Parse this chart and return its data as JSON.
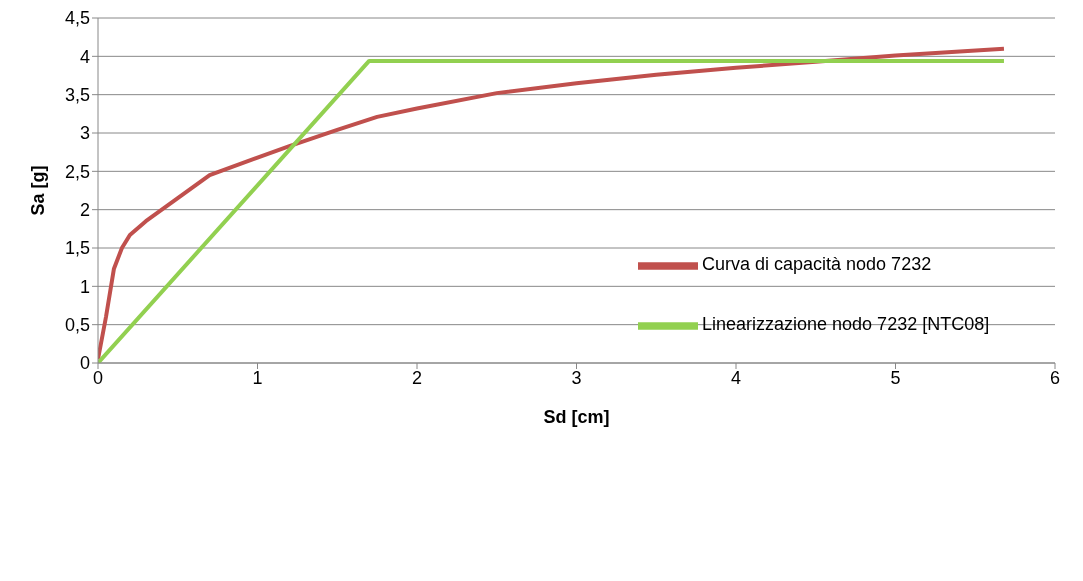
{
  "chart_data": {
    "type": "line",
    "xlabel": "Sd [cm]",
    "ylabel": "Sa [g]",
    "xlim": [
      0,
      6
    ],
    "xticks": [
      0,
      1,
      2,
      3,
      4,
      5,
      6
    ],
    "ylim": [
      0,
      4.5
    ],
    "yticks": [
      0,
      {
        "value": 0.5,
        "label": "0,5"
      },
      1,
      {
        "value": 1.5,
        "label": "1,5"
      },
      2,
      {
        "value": 2.5,
        "label": "2,5"
      },
      3,
      {
        "value": 3.5,
        "label": "3,5"
      },
      4,
      {
        "value": 4.5,
        "label": "4,5"
      }
    ],
    "grid": "y",
    "legend": "right",
    "marker": "none",
    "line_style": "solid",
    "series": [
      {
        "name": "Curva di capacità nodo 7232",
        "color": "#c0504d",
        "x": [
          0,
          0.05,
          0.1,
          0.15,
          0.2,
          0.3,
          0.5,
          0.7,
          1,
          1.2,
          1.5,
          1.75,
          2,
          2.5,
          3,
          3.5,
          4,
          4.5,
          5,
          5.68
        ],
        "values": [
          0.05,
          0.6,
          1.23,
          1.5,
          1.67,
          1.85,
          2.15,
          2.45,
          2.68,
          2.83,
          3.04,
          3.21,
          3.32,
          3.52,
          3.65,
          3.76,
          3.85,
          3.93,
          4.01,
          4.1
        ]
      },
      {
        "name": "Linearizzazione nodo 7232 [NTC08]",
        "color": "#92d050",
        "x": [
          0,
          1.7,
          5.68
        ],
        "values": [
          0,
          3.94,
          3.94
        ]
      }
    ]
  }
}
